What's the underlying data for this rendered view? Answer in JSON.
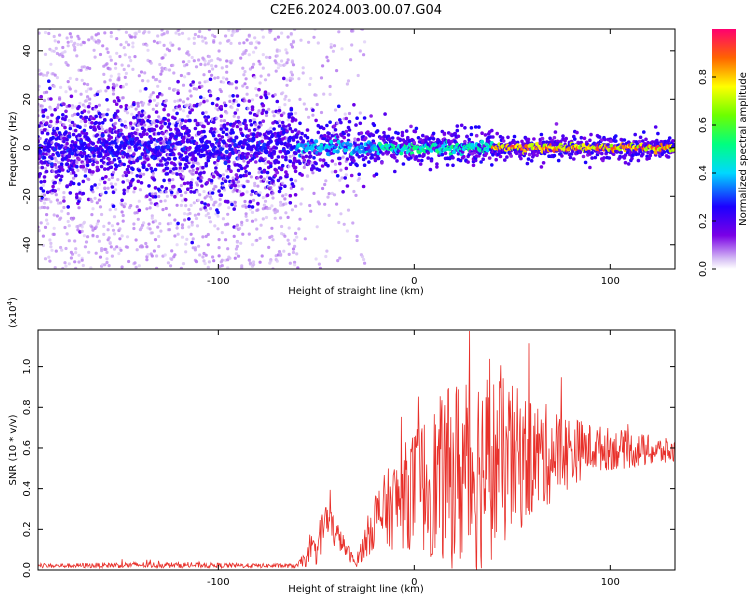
{
  "title": "C2E6.2024.003.00.07.G04",
  "chart_data": [
    {
      "type": "heatmap",
      "xlabel": "Height of straight line (km)",
      "ylabel": "Frequency (Hz)",
      "xlim": [
        -192,
        133
      ],
      "ylim": [
        -50,
        49
      ],
      "xticks": [
        -100,
        0,
        100
      ],
      "yticks": [
        -40,
        -20,
        0,
        20,
        40
      ],
      "colorbar": {
        "label": "Normalized spectral amplitude",
        "range": [
          0,
          1
        ],
        "ticks": [
          0.0,
          0.2,
          0.4,
          0.6,
          0.8
        ]
      },
      "bands": [
        {
          "x0": -192,
          "x1": -60,
          "half_width": 8,
          "amp": 0.3
        },
        {
          "x0": -60,
          "x1": -20,
          "half_width": 5,
          "amp": 0.45
        },
        {
          "x0": -20,
          "x1": 40,
          "half_width": 3,
          "amp": 0.55
        },
        {
          "x0": 40,
          "x1": 133,
          "half_width": 2,
          "amp": 0.95
        }
      ],
      "grid": false
    },
    {
      "type": "line",
      "xlabel": "Height of straight line (km)",
      "ylabel": "SNR (10 * v/v)",
      "multiplier": "(x10",
      "multiplier_exp": "4",
      "multiplier_close": ")",
      "xlim": [
        -192,
        133
      ],
      "ylim": [
        0,
        1.18
      ],
      "xticks": [
        -100,
        0,
        100
      ],
      "yticks": [
        0.0,
        0.2,
        0.4,
        0.6,
        0.8,
        1.0
      ],
      "color": "#e8302a",
      "envelope": [
        {
          "x": -192,
          "base": 0.02,
          "amp": 0.01
        },
        {
          "x": -140,
          "base": 0.025,
          "amp": 0.015
        },
        {
          "x": -60,
          "base": 0.02,
          "amp": 0.01
        },
        {
          "x": -50,
          "base": 0.1,
          "amp": 0.08
        },
        {
          "x": -45,
          "base": 0.25,
          "amp": 0.12
        },
        {
          "x": -38,
          "base": 0.15,
          "amp": 0.06
        },
        {
          "x": -30,
          "base": 0.03,
          "amp": 0.02
        },
        {
          "x": -20,
          "base": 0.25,
          "amp": 0.15
        },
        {
          "x": 0,
          "base": 0.4,
          "amp": 0.3
        },
        {
          "x": 30,
          "base": 0.5,
          "amp": 0.55
        },
        {
          "x": 60,
          "base": 0.55,
          "amp": 0.3
        },
        {
          "x": 90,
          "base": 0.6,
          "amp": 0.12
        },
        {
          "x": 133,
          "base": 0.58,
          "amp": 0.06
        }
      ],
      "grid": false
    }
  ]
}
